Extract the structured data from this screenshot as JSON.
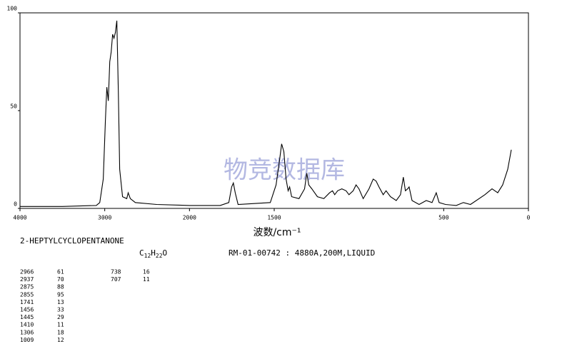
{
  "chart_data": {
    "type": "line",
    "x_label": "波数/cm⁻¹",
    "watermark": "物竞数据库",
    "xlim": [
      4000,
      0
    ],
    "x_scale_break": 2000,
    "xticks": [
      4000,
      3000,
      2000,
      1500,
      500,
      0
    ],
    "ylim": [
      0,
      100
    ],
    "yticks": [
      0,
      50,
      100
    ],
    "series": [
      {
        "color": "#000000",
        "x": [
          4000,
          3500,
          3100,
          3059,
          3017,
          2992,
          2975,
          2958,
          2941,
          2924,
          2907,
          2891,
          2874,
          2857,
          2840,
          2824,
          2790,
          2740,
          2723,
          2698,
          2639,
          2387,
          2000,
          1819,
          1768,
          1751,
          1741,
          1730,
          1713,
          1523,
          1489,
          1468,
          1456,
          1443,
          1430,
          1418,
          1409,
          1397,
          1354,
          1321,
          1308,
          1296,
          1278,
          1245,
          1207,
          1173,
          1156,
          1143,
          1126,
          1101,
          1076,
          1059,
          1034,
          1017,
          1000,
          975,
          941,
          916,
          899,
          882,
          857,
          840,
          814,
          780,
          755,
          738,
          726,
          713,
          704,
          687,
          645,
          603,
          569,
          544,
          527,
          489,
          426,
          384,
          342,
          257,
          215,
          181,
          152,
          122,
          101
        ],
        "values": [
          1,
          1,
          1.5,
          3,
          15,
          45,
          62,
          55,
          75,
          80,
          89,
          87,
          90,
          96,
          60,
          20,
          6,
          5,
          8,
          5,
          3,
          2,
          1.5,
          1.5,
          3,
          11,
          13,
          8,
          2,
          3,
          12,
          25,
          33,
          29,
          15,
          9,
          11,
          6,
          5,
          10,
          18,
          12,
          10,
          6,
          5,
          8,
          9,
          7,
          9,
          10,
          9,
          7,
          9,
          12,
          10,
          5,
          10,
          15,
          14,
          11,
          7,
          9,
          6,
          4,
          7,
          16,
          9,
          10,
          11,
          4,
          2,
          4,
          3,
          8,
          3,
          2,
          1.5,
          3,
          2,
          7,
          10,
          8,
          12,
          20,
          30
        ]
      }
    ]
  },
  "info": {
    "name": "2-HEPTYLCYCLOPENTANONE",
    "formula": "C12H22O",
    "code": "RM-01-00742 : 4880A,200M,LIQUID",
    "peaks_left": [
      [
        "2966",
        "61"
      ],
      [
        "2937",
        "70"
      ],
      [
        "2875",
        "88"
      ],
      [
        "2855",
        "95"
      ],
      [
        "1741",
        "13"
      ],
      [
        "1456",
        "33"
      ],
      [
        "1445",
        "29"
      ],
      [
        "1410",
        "11"
      ],
      [
        "1306",
        "18"
      ],
      [
        "1009",
        "12"
      ]
    ],
    "peaks_right": [
      [
        "738",
        "16"
      ],
      [
        "707",
        "11"
      ]
    ]
  }
}
